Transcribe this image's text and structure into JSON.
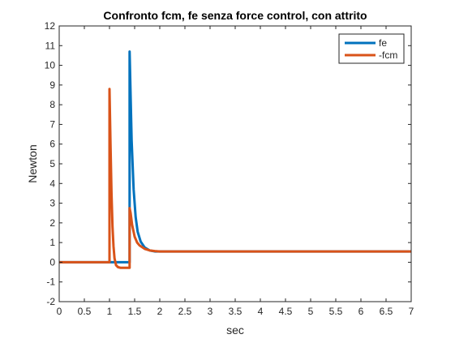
{
  "chart_data": {
    "type": "line",
    "title": "Confronto fcm, fe senza force control, con attrito",
    "xlabel": "sec",
    "ylabel": "Newton",
    "xlim": [
      0,
      7
    ],
    "ylim": [
      -2,
      12
    ],
    "xticks": [
      0,
      0.5,
      1,
      1.5,
      2,
      2.5,
      3,
      3.5,
      4,
      4.5,
      5,
      5.5,
      6,
      6.5,
      7
    ],
    "xtick_labels": [
      "0",
      "0.5",
      "1",
      "1.5",
      "2",
      "2.5",
      "3",
      "3.5",
      "4",
      "4.5",
      "5",
      "5.5",
      "6",
      "6.5",
      "7"
    ],
    "yticks": [
      -2,
      -1,
      0,
      1,
      2,
      3,
      4,
      5,
      6,
      7,
      8,
      9,
      10,
      11,
      12
    ],
    "ytick_labels": [
      "-2",
      "-1",
      "0",
      "1",
      "2",
      "3",
      "4",
      "5",
      "6",
      "7",
      "8",
      "9",
      "10",
      "11",
      "12"
    ],
    "grid": false,
    "legend_position": "top-right",
    "series": [
      {
        "name": "fe",
        "color": "#0072BD",
        "x": [
          0,
          1.4,
          1.4,
          1.44,
          1.48,
          1.52,
          1.56,
          1.62,
          1.7,
          1.8,
          1.9,
          2.0,
          2.2,
          7.0
        ],
        "y": [
          0,
          0,
          10.7,
          6.2,
          3.7,
          2.3,
          1.55,
          1.05,
          0.75,
          0.6,
          0.55,
          0.55,
          0.55,
          0.55
        ]
      },
      {
        "name": "-fcm",
        "color": "#D95319",
        "x": [
          0,
          1.0,
          1.0,
          1.02,
          1.04,
          1.06,
          1.08,
          1.1,
          1.13,
          1.17,
          1.22,
          1.3,
          1.4,
          1.4,
          1.42,
          1.45,
          1.5,
          1.55,
          1.6,
          1.7,
          1.8,
          1.9,
          2.0,
          2.2,
          7.0
        ],
        "y": [
          0,
          0,
          8.8,
          6.0,
          3.5,
          1.8,
          0.8,
          0.2,
          -0.15,
          -0.25,
          -0.28,
          -0.28,
          -0.28,
          2.75,
          2.5,
          1.9,
          1.3,
          1.0,
          0.85,
          0.68,
          0.6,
          0.57,
          0.55,
          0.55,
          0.55
        ]
      }
    ]
  }
}
